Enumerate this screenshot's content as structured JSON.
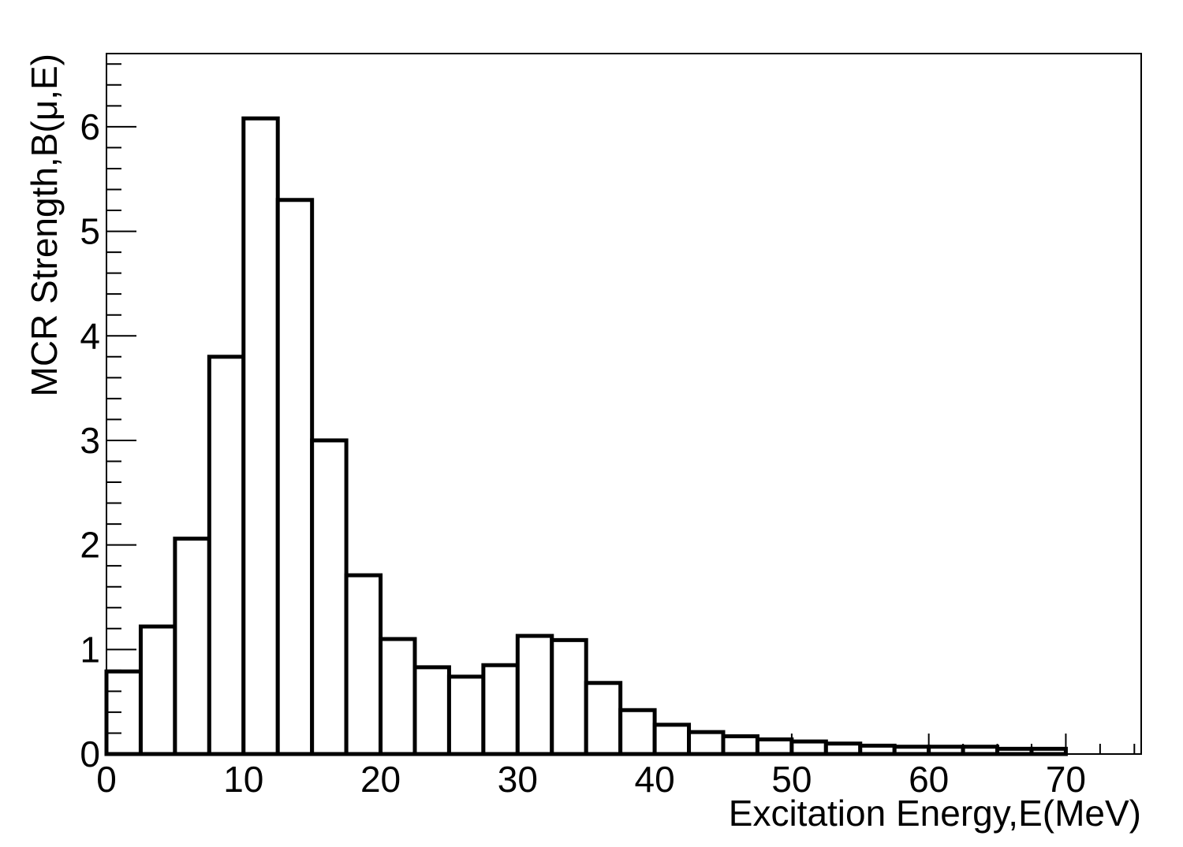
{
  "chart_data": {
    "type": "bar",
    "title": "",
    "xlabel": "Excitation Energy,E(MeV)",
    "ylabel": "MCR Strength,B(μ,E)",
    "xlim": [
      0,
      75.5
    ],
    "ylim": [
      0,
      6.7
    ],
    "bin_width": 2.5,
    "x_ticks": [
      0,
      10,
      20,
      30,
      40,
      50,
      60,
      70
    ],
    "x_tick_labels": [
      "0",
      "10",
      "20",
      "30",
      "40",
      "50",
      "60",
      "70"
    ],
    "y_ticks": [
      0,
      1,
      2,
      3,
      4,
      5,
      6
    ],
    "y_tick_labels": [
      "0",
      "1",
      "2",
      "3",
      "4",
      "5",
      "6"
    ],
    "grid": false,
    "legend": "none",
    "bar_fill": "#ffffff",
    "bar_stroke": "#000000",
    "bins": [
      {
        "x_start": 0.0,
        "x_end": 2.5,
        "value": 0.79
      },
      {
        "x_start": 2.5,
        "x_end": 5.0,
        "value": 1.22
      },
      {
        "x_start": 5.0,
        "x_end": 7.5,
        "value": 2.06
      },
      {
        "x_start": 7.5,
        "x_end": 10.0,
        "value": 3.8
      },
      {
        "x_start": 10.0,
        "x_end": 12.5,
        "value": 6.08
      },
      {
        "x_start": 12.5,
        "x_end": 15.0,
        "value": 5.3
      },
      {
        "x_start": 15.0,
        "x_end": 17.5,
        "value": 3.0
      },
      {
        "x_start": 17.5,
        "x_end": 20.0,
        "value": 1.71
      },
      {
        "x_start": 20.0,
        "x_end": 22.5,
        "value": 1.1
      },
      {
        "x_start": 22.5,
        "x_end": 25.0,
        "value": 0.83
      },
      {
        "x_start": 25.0,
        "x_end": 27.5,
        "value": 0.74
      },
      {
        "x_start": 27.5,
        "x_end": 30.0,
        "value": 0.85
      },
      {
        "x_start": 30.0,
        "x_end": 32.5,
        "value": 1.13
      },
      {
        "x_start": 32.5,
        "x_end": 35.0,
        "value": 1.09
      },
      {
        "x_start": 35.0,
        "x_end": 37.5,
        "value": 0.68
      },
      {
        "x_start": 37.5,
        "x_end": 40.0,
        "value": 0.42
      },
      {
        "x_start": 40.0,
        "x_end": 42.5,
        "value": 0.28
      },
      {
        "x_start": 42.5,
        "x_end": 45.0,
        "value": 0.21
      },
      {
        "x_start": 45.0,
        "x_end": 47.5,
        "value": 0.17
      },
      {
        "x_start": 47.5,
        "x_end": 50.0,
        "value": 0.14
      },
      {
        "x_start": 50.0,
        "x_end": 52.5,
        "value": 0.12
      },
      {
        "x_start": 52.5,
        "x_end": 55.0,
        "value": 0.1
      },
      {
        "x_start": 55.0,
        "x_end": 57.5,
        "value": 0.08
      },
      {
        "x_start": 57.5,
        "x_end": 60.0,
        "value": 0.07
      },
      {
        "x_start": 60.0,
        "x_end": 62.5,
        "value": 0.07
      },
      {
        "x_start": 62.5,
        "x_end": 65.0,
        "value": 0.07
      },
      {
        "x_start": 65.0,
        "x_end": 67.5,
        "value": 0.05
      },
      {
        "x_start": 67.5,
        "x_end": 70.0,
        "value": 0.05
      }
    ]
  }
}
